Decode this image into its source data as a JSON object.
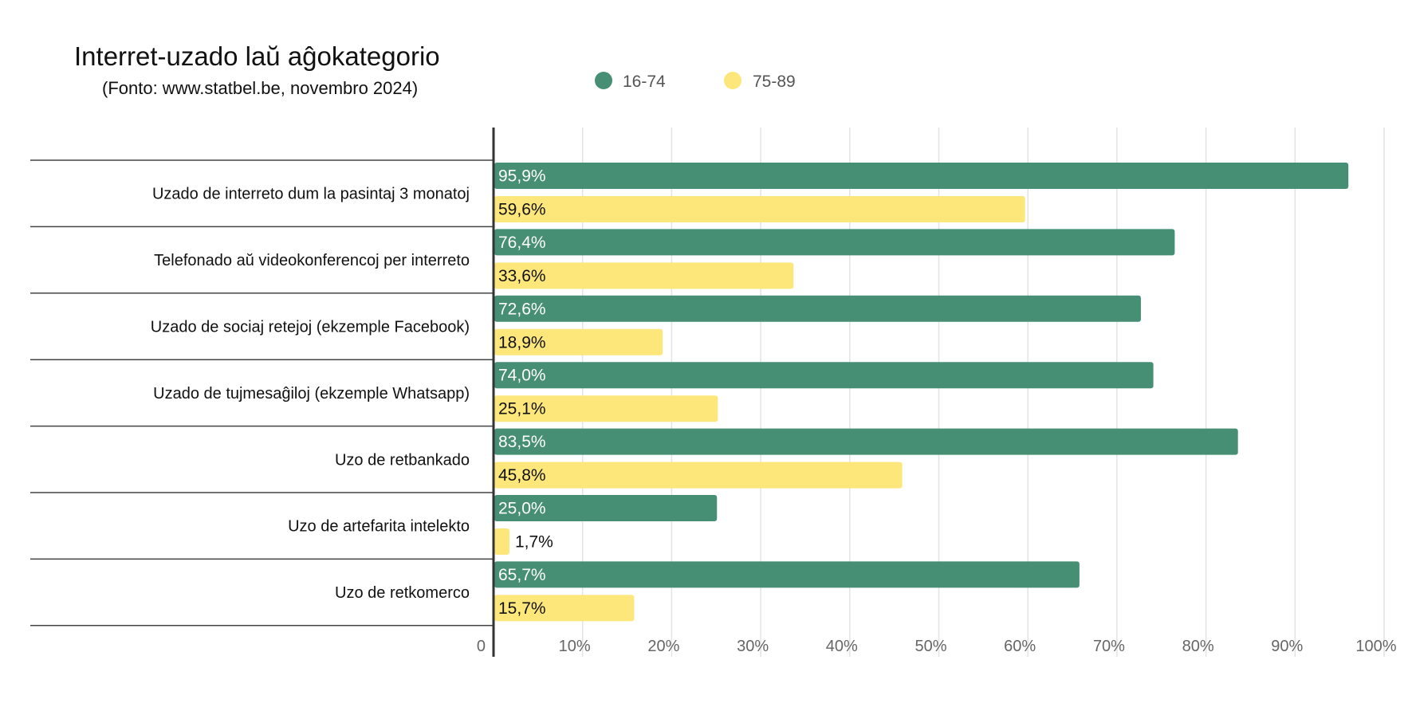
{
  "chart_data": {
    "type": "bar",
    "orientation": "horizontal",
    "title": "Interret-uzado laŭ aĝokategorio",
    "subtitle": "(Fonto: www.statbel.be, novembro 2024)",
    "categories": [
      "Uzado de interreto dum la pasintaj 3 monatoj",
      "Telefonado aŭ videokonferencoj per interreto",
      "Uzado de sociaj retejoj (ekzemple Facebook)",
      "Uzado de tujmesaĝiloj (ekzemple Whatsapp)",
      "Uzo de retbankado",
      "Uzo de artefarita intelekto",
      "Uzo de retkomerco"
    ],
    "series": [
      {
        "name": "16-74",
        "color": "#468f74",
        "values": [
          95.9,
          76.4,
          72.6,
          74.0,
          83.5,
          25.0,
          65.7
        ],
        "labels": [
          "95,9%",
          "76,4%",
          "72,6%",
          "74,0%",
          "83,5%",
          "25,0%",
          "65,7%"
        ]
      },
      {
        "name": "75-89",
        "color": "#fde77a",
        "values": [
          59.6,
          33.6,
          18.9,
          25.1,
          45.8,
          1.7,
          15.7
        ],
        "labels": [
          "59,6%",
          "33,6%",
          "18,9%",
          "25,1%",
          "45,8%",
          "1,7%",
          "15,7%"
        ]
      }
    ],
    "xlim": [
      0,
      100
    ],
    "x_ticks": [
      "0",
      "10%",
      "20%",
      "30%",
      "40%",
      "50%",
      "60%",
      "70%",
      "80%",
      "90%",
      "100%"
    ],
    "grid": true,
    "legend_position": "top"
  }
}
